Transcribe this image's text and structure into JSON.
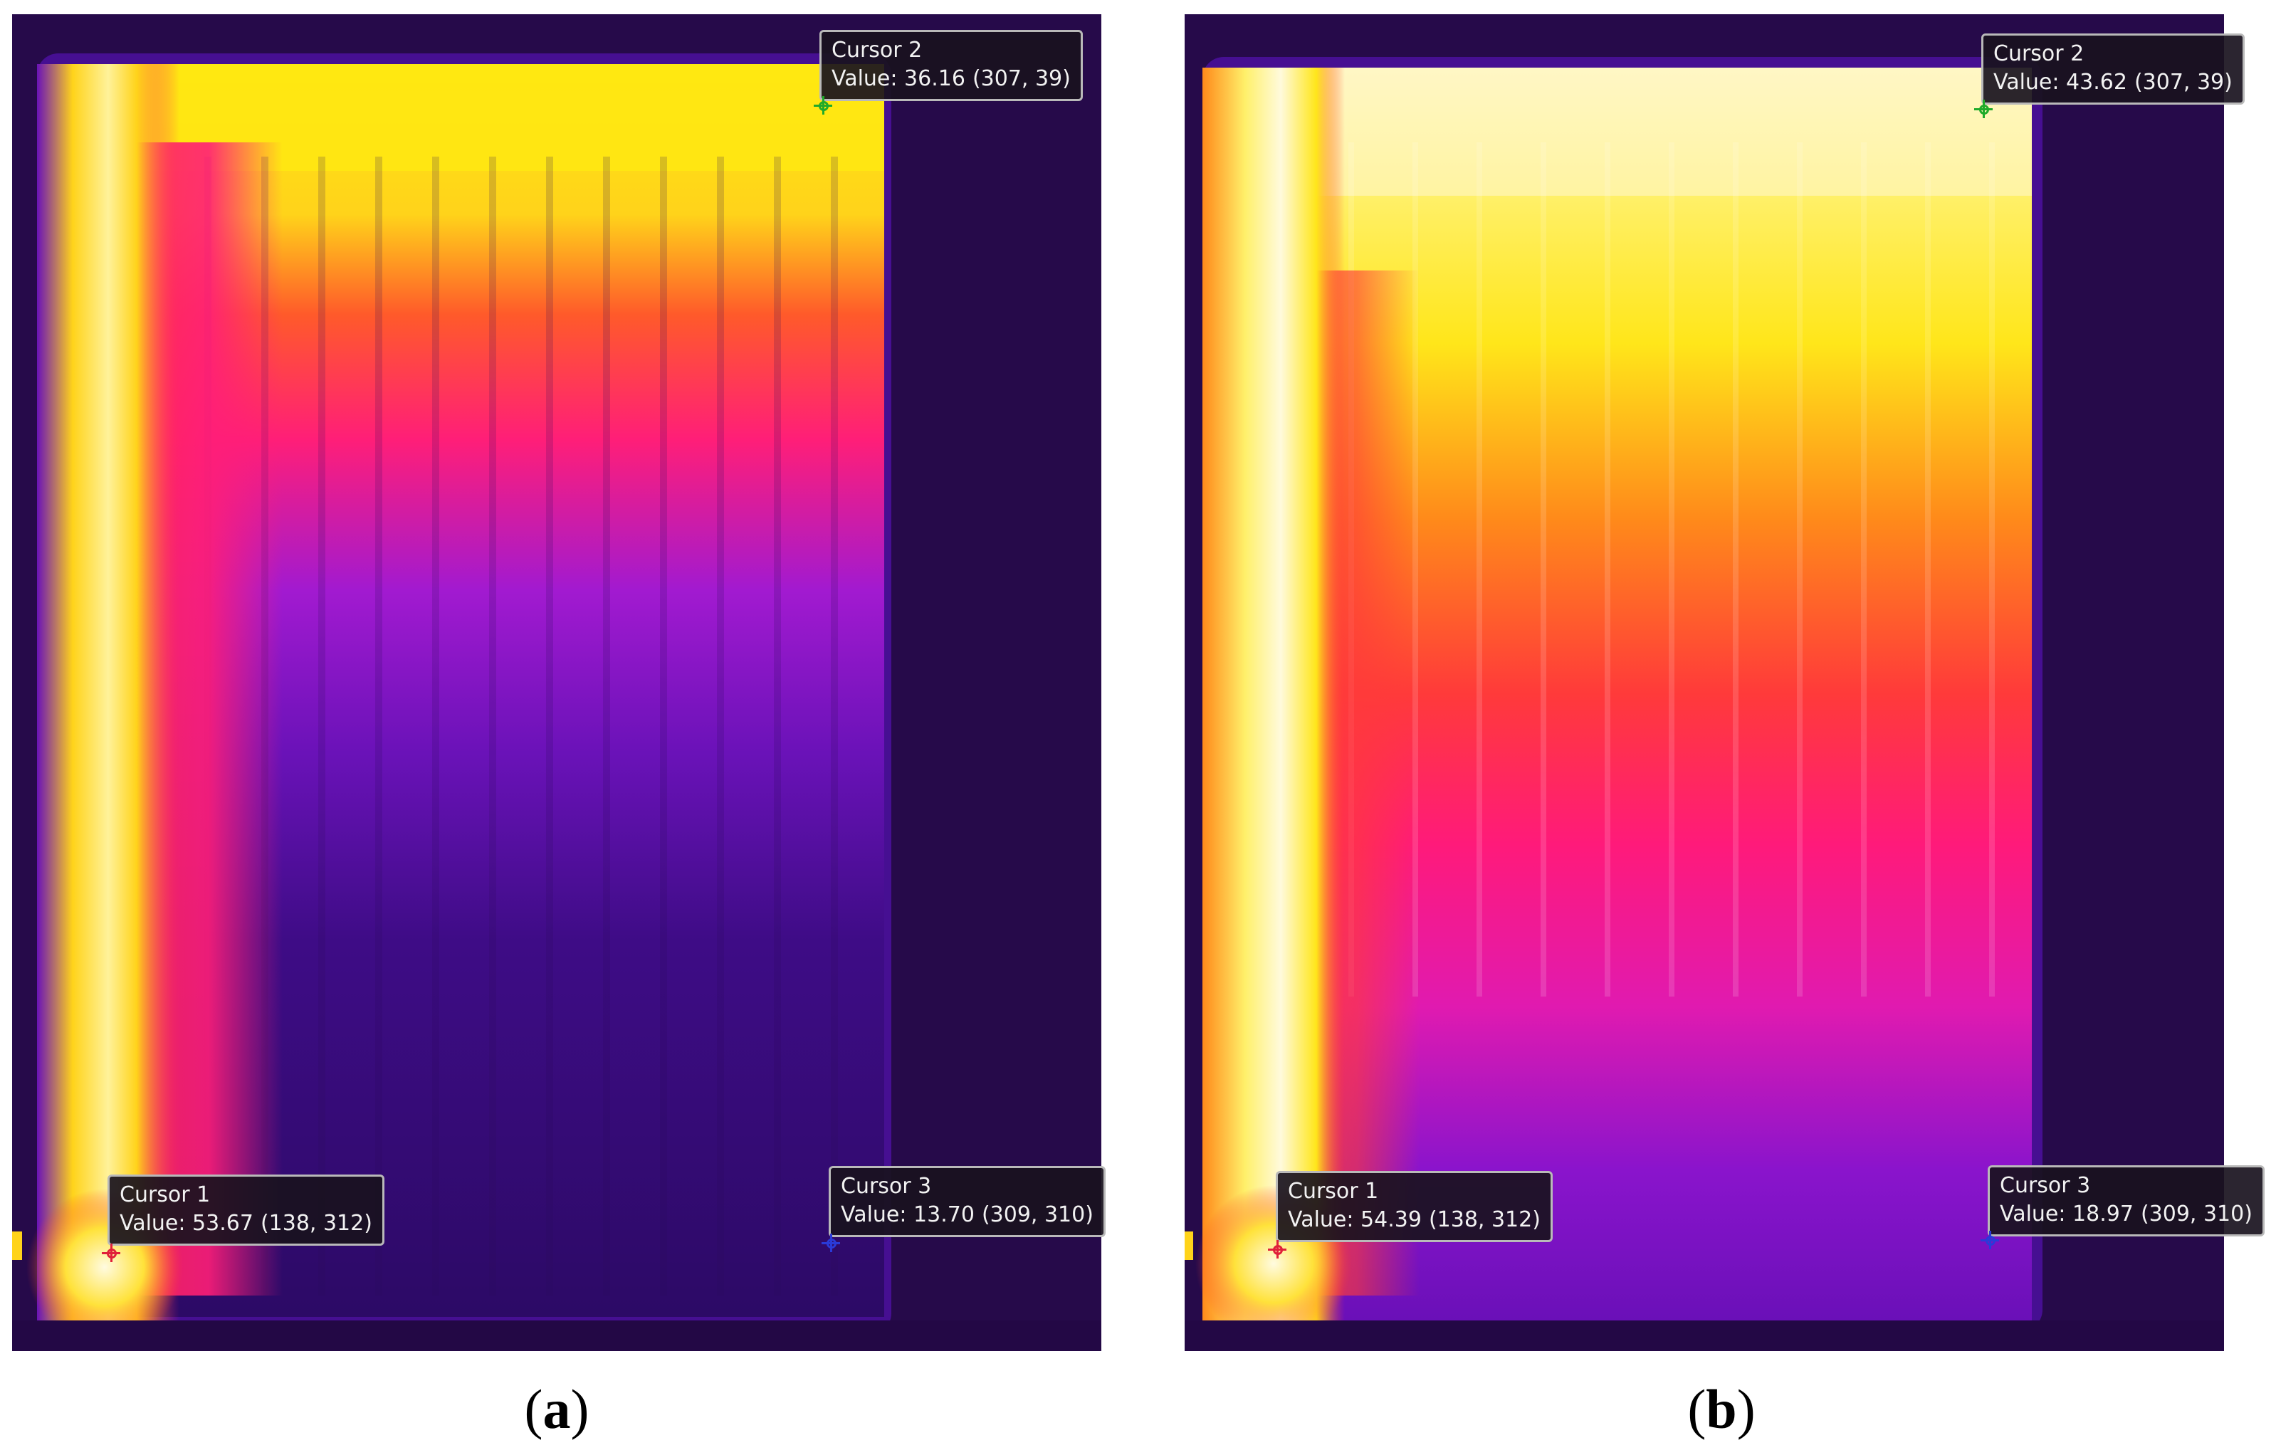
{
  "panels": [
    {
      "id": "a",
      "caption_letter": "a",
      "cursors": [
        {
          "name": "Cursor 1",
          "value_prefix": "Value:",
          "value": "53.67",
          "coords": "(138, 312)",
          "marker_color": "#e0203a"
        },
        {
          "name": "Cursor 2",
          "value_prefix": "Value:",
          "value": "36.16",
          "coords": "(307, 39)",
          "marker_color": "#1faa2a"
        },
        {
          "name": "Cursor 3",
          "value_prefix": "Value:",
          "value": "13.70",
          "coords": "(309, 310)",
          "marker_color": "#2a3ad8"
        }
      ]
    },
    {
      "id": "b",
      "caption_letter": "b",
      "cursors": [
        {
          "name": "Cursor 1",
          "value_prefix": "Value:",
          "value": "54.39",
          "coords": "(138, 312)",
          "marker_color": "#e0203a"
        },
        {
          "name": "Cursor 2",
          "value_prefix": "Value:",
          "value": "43.62",
          "coords": "(307, 39)",
          "marker_color": "#1faa2a"
        },
        {
          "name": "Cursor 3",
          "value_prefix": "Value:",
          "value": "18.97",
          "coords": "(309, 310)",
          "marker_color": "#2a3ad8"
        }
      ]
    }
  ],
  "palette": {
    "background_cold": "#260a4a",
    "cool": "#6a10b8",
    "mid": "#ff1a8c",
    "warm": "#ff3b2a",
    "hot": "#ffd21a",
    "hottest": "#fff6c8"
  }
}
